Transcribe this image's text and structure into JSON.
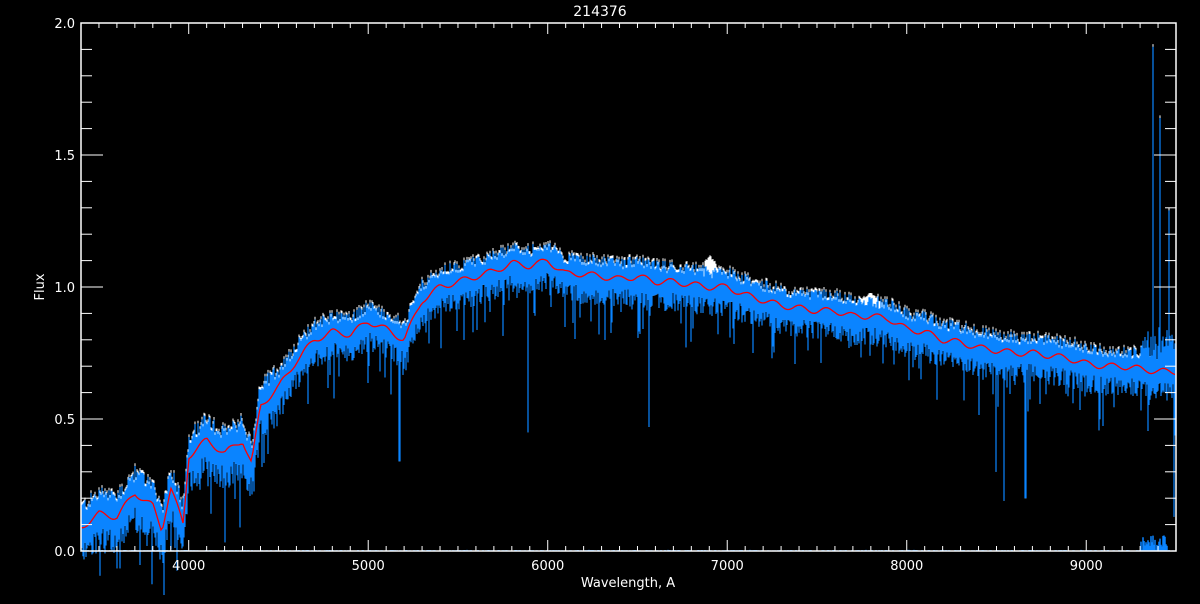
{
  "chart_data": {
    "type": "line",
    "title": "214376",
    "xlabel": "Wavelength, A",
    "ylabel": "Flux",
    "xlim": [
      3400,
      9500
    ],
    "ylim": [
      0.0,
      2.0
    ],
    "x_ticks": [
      4000,
      5000,
      6000,
      7000,
      8000,
      9000
    ],
    "x_tick_labels": [
      "4000",
      "5000",
      "6000",
      "7000",
      "8000",
      "9000"
    ],
    "y_ticks": [
      0.0,
      0.5,
      1.0,
      1.5,
      2.0
    ],
    "y_tick_labels": [
      "0.0",
      "0.5",
      "1.0",
      "1.5",
      "2.0"
    ],
    "grid": false,
    "legend": "none",
    "colors": {
      "background": "#000000",
      "axes": "#ffffff",
      "observed": "#0a84ff",
      "secondary": "#ffffff",
      "model": "#ff0000"
    },
    "model_curve": {
      "color": "#ff0000",
      "x": [
        3400,
        3500,
        3600,
        3700,
        3800,
        3850,
        3900,
        3970,
        4000,
        4100,
        4200,
        4300,
        4350,
        4400,
        4500,
        4600,
        4700,
        4800,
        4900,
        5000,
        5100,
        5200,
        5300,
        5400,
        5500,
        5600,
        5700,
        5800,
        5900,
        6000,
        6100,
        6200,
        6300,
        6400,
        6500,
        6600,
        6700,
        6800,
        6900,
        7000,
        7100,
        7200,
        7300,
        7400,
        7500,
        7600,
        7700,
        7800,
        7900,
        8000,
        8100,
        8200,
        8300,
        8400,
        8500,
        8600,
        8700,
        8800,
        8900,
        9000,
        9100,
        9200,
        9300,
        9400,
        9500
      ],
      "y": [
        0.09,
        0.14,
        0.13,
        0.22,
        0.17,
        0.08,
        0.24,
        0.1,
        0.36,
        0.42,
        0.37,
        0.42,
        0.33,
        0.55,
        0.62,
        0.72,
        0.8,
        0.83,
        0.82,
        0.87,
        0.84,
        0.8,
        0.95,
        1.0,
        1.02,
        1.04,
        1.06,
        1.09,
        1.08,
        1.1,
        1.05,
        1.05,
        1.04,
        1.03,
        1.04,
        1.02,
        1.02,
        1.01,
        1.0,
        1.0,
        0.97,
        0.95,
        0.93,
        0.92,
        0.91,
        0.91,
        0.89,
        0.89,
        0.88,
        0.84,
        0.83,
        0.8,
        0.79,
        0.77,
        0.76,
        0.75,
        0.75,
        0.74,
        0.73,
        0.71,
        0.7,
        0.7,
        0.69,
        0.68,
        0.68
      ]
    },
    "observed_spectrum": {
      "color": "#0a84ff",
      "scatter_about_model": 0.08,
      "absorption_lines": [
        {
          "x": 5175,
          "y": 0.34
        },
        {
          "x": 5890,
          "y": 0.45
        },
        {
          "x": 6563,
          "y": 0.47
        },
        {
          "x": 8498,
          "y": 0.3
        },
        {
          "x": 8542,
          "y": 0.19
        },
        {
          "x": 8662,
          "y": 0.2
        },
        {
          "x": 9490,
          "y": 0.13
        }
      ],
      "emission_spikes": [
        {
          "x": 9370,
          "y": 1.91
        },
        {
          "x": 9410,
          "y": 1.64
        },
        {
          "x": 9460,
          "y": 1.29
        }
      ]
    },
    "secondary_spectrum": {
      "color": "#ffffff",
      "excess_regions": [
        {
          "x": [
            6850,
            6960
          ],
          "y": 1.13
        },
        {
          "x": [
            7700,
            7900
          ],
          "y": 0.98
        }
      ]
    },
    "error_spectrum": {
      "color": "#0a84ff",
      "y": 0.0,
      "bump_region": [
        9300,
        9450
      ],
      "bump_max": 0.06
    }
  }
}
